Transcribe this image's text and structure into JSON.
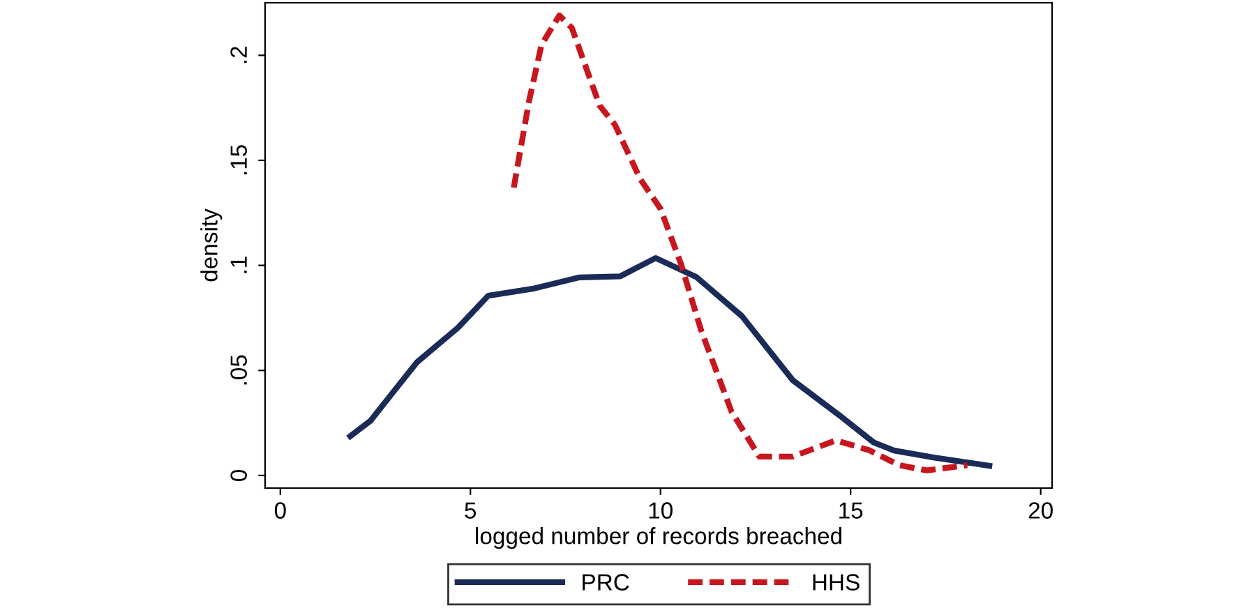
{
  "chart_data": {
    "type": "line",
    "xlabel": "logged number of records breached",
    "ylabel": "density",
    "xlim": [
      -0.4,
      20.3
    ],
    "ylim": [
      -0.006,
      0.225
    ],
    "xticks": [
      0,
      5,
      10,
      15,
      20
    ],
    "yticks": [
      {
        "value": 0,
        "label": "0"
      },
      {
        "value": 0.05,
        "label": ".05"
      },
      {
        "value": 0.1,
        "label": ".1"
      },
      {
        "value": 0.15,
        "label": ".15"
      },
      {
        "value": 0.2,
        "label": ".2"
      }
    ],
    "legend": "bottom",
    "grid": false,
    "series": [
      {
        "name": "PRC",
        "color": "#1a2b57",
        "line_style": "solid",
        "x": [
          1.84,
          2.37,
          2.93,
          3.6,
          4.67,
          5.47,
          6.67,
          7.87,
          8.94,
          9.87,
          10.94,
          12.14,
          13.48,
          14.68,
          15.61,
          16.14,
          17.21,
          18.65
        ],
        "values": [
          0.0187,
          0.026,
          0.0388,
          0.054,
          0.0703,
          0.0856,
          0.089,
          0.0943,
          0.0948,
          0.1035,
          0.0945,
          0.0759,
          0.0453,
          0.029,
          0.0157,
          0.0119,
          0.0085,
          0.0046
        ]
      },
      {
        "name": "HHS",
        "color": "#c8161e",
        "line_style": "dashed",
        "x": [
          6.14,
          6.54,
          6.87,
          7.34,
          7.67,
          8.4,
          8.8,
          9.47,
          10.0,
          10.54,
          11.07,
          11.87,
          12.6,
          13.48,
          14.61,
          15.48,
          16.28,
          17.0,
          18.07
        ],
        "values": [
          0.137,
          0.178,
          0.205,
          0.219,
          0.213,
          0.176,
          0.167,
          0.141,
          0.127,
          0.1006,
          0.069,
          0.0303,
          0.009,
          0.009,
          0.0167,
          0.0121,
          0.0049,
          0.0024,
          0.0049
        ]
      }
    ]
  }
}
